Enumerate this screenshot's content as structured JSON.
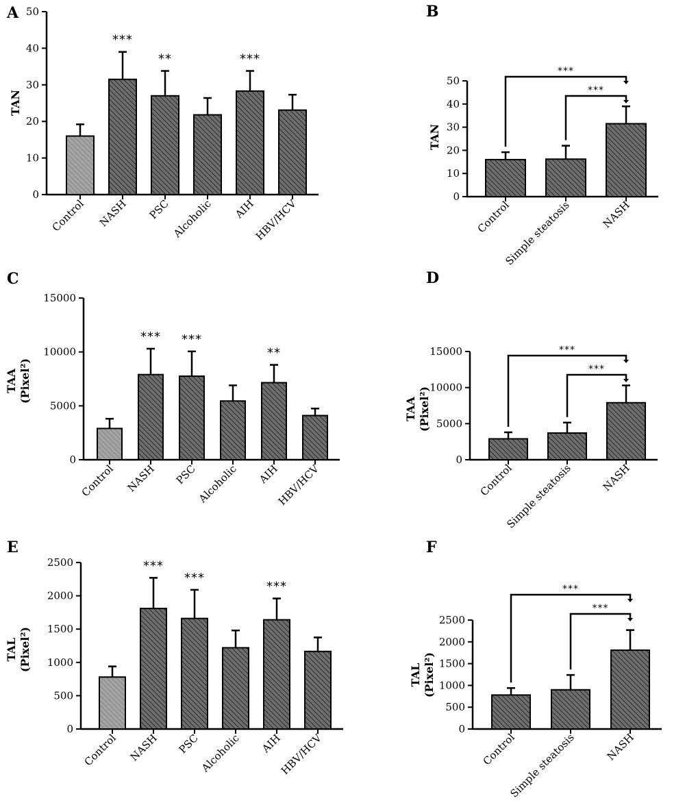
{
  "chart_data": [
    {
      "panel": "A",
      "type": "bar",
      "ylabel": [
        "TAN"
      ],
      "ylim": [
        0,
        50
      ],
      "yticks": [
        0,
        10,
        20,
        30,
        40,
        50
      ],
      "categories": [
        "Control",
        "NASH",
        "PSC",
        "Alcoholic",
        "AIH",
        "HBV/HCV"
      ],
      "values": [
        16,
        31.5,
        27,
        21.8,
        28.3,
        23.1
      ],
      "errors": [
        3.2,
        7.5,
        6.8,
        4.6,
        5.5,
        4.2
      ],
      "annotations": [
        "",
        "***",
        "**",
        "",
        "***",
        ""
      ],
      "brackets": []
    },
    {
      "panel": "B",
      "type": "bar",
      "ylabel": [
        "TAN"
      ],
      "ylim": [
        0,
        50
      ],
      "yticks": [
        0,
        10,
        20,
        30,
        40,
        50
      ],
      "categories": [
        "Control",
        "Simple steatosis",
        "NASH"
      ],
      "values": [
        16,
        16.2,
        31.5
      ],
      "errors": [
        3.2,
        5.8,
        7.5
      ],
      "annotations": [
        "",
        "",
        ""
      ],
      "brackets": [
        {
          "from": 0,
          "to": 2,
          "label": "***"
        },
        {
          "from": 1,
          "to": 2,
          "label": "***"
        }
      ]
    },
    {
      "panel": "C",
      "type": "bar",
      "ylabel": [
        "TAA",
        "(Pixel²)"
      ],
      "ylim": [
        0,
        15000
      ],
      "yticks": [
        0,
        5000,
        10000,
        15000
      ],
      "categories": [
        "Control",
        "NASH",
        "PSC",
        "Alcoholic",
        "AIH",
        "HBV/HCV"
      ],
      "values": [
        2900,
        7900,
        7750,
        5450,
        7150,
        4100
      ],
      "errors": [
        900,
        2400,
        2300,
        1450,
        1650,
        650
      ],
      "annotations": [
        "",
        "***",
        "***",
        "",
        "**",
        ""
      ],
      "brackets": []
    },
    {
      "panel": "D",
      "type": "bar",
      "ylabel": [
        "TAA",
        "(Pixel²)"
      ],
      "ylim": [
        0,
        15000
      ],
      "yticks": [
        0,
        5000,
        10000,
        15000
      ],
      "categories": [
        "Control",
        "Simple steatosis",
        "NASH"
      ],
      "values": [
        2900,
        3700,
        7900
      ],
      "errors": [
        900,
        1450,
        2400
      ],
      "annotations": [
        "",
        "",
        ""
      ],
      "brackets": [
        {
          "from": 0,
          "to": 2,
          "label": "***"
        },
        {
          "from": 1,
          "to": 2,
          "label": "***"
        }
      ]
    },
    {
      "panel": "E",
      "type": "bar",
      "ylabel": [
        "TAL",
        "(Pixel²)"
      ],
      "ylim": [
        0,
        2500
      ],
      "yticks": [
        0,
        500,
        1000,
        1500,
        2000,
        2500
      ],
      "categories": [
        "Control",
        "NASH",
        "PSC",
        "Alcoholic",
        "AIH",
        "HBV/HCV"
      ],
      "values": [
        780,
        1810,
        1660,
        1220,
        1640,
        1165
      ],
      "errors": [
        160,
        460,
        430,
        260,
        320,
        210
      ],
      "annotations": [
        "",
        "***",
        "***",
        "",
        "***",
        ""
      ],
      "brackets": []
    },
    {
      "panel": "F",
      "type": "bar",
      "ylabel": [
        "TAL",
        "(Pixel²)"
      ],
      "ylim": [
        0,
        2500
      ],
      "yticks": [
        0,
        500,
        1000,
        1500,
        2000,
        2500
      ],
      "categories": [
        "Control",
        "Simple steatosis",
        "NASH"
      ],
      "values": [
        780,
        900,
        1810
      ],
      "errors": [
        160,
        340,
        460
      ],
      "annotations": [
        "",
        "",
        ""
      ],
      "brackets": [
        {
          "from": 0,
          "to": 2,
          "label": "***"
        },
        {
          "from": 1,
          "to": 2,
          "label": "***"
        }
      ]
    }
  ],
  "colors": {
    "control_fill": "#9a9a9a",
    "bar_fill": "#6e6e6e",
    "hatch": "#2b2b2b",
    "axis": "#000000"
  }
}
